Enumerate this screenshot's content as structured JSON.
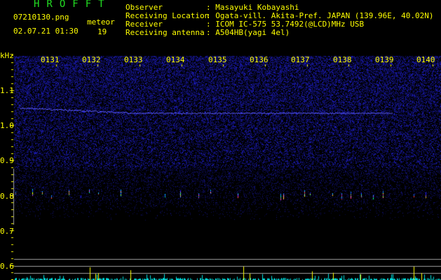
{
  "app_title": "HROFFT",
  "file_name": "07210130.png",
  "datetime": "02.07.21 01:30",
  "meteor_label": "meteor",
  "meteor_count": "19",
  "info": [
    {
      "label": "Observer",
      "value": ": Masayuki Kobayashi"
    },
    {
      "label": "Receiving Location",
      "value": ": Ogata-vill. Akita-Pref. JAPAN (139.96E, 40.02N)"
    },
    {
      "label": "Receiver",
      "value": ": ICOM IC-575 53.7492(@LCD)MHz USB"
    },
    {
      "label": "Receiving antenna",
      "value": ": A504HB(yagi 4el)"
    }
  ],
  "y_axis": {
    "unit": "kHz",
    "ticks": [
      "1.1",
      "1.0",
      "0.9",
      "0.8",
      "0.7",
      "0.6"
    ]
  },
  "time_labels": [
    "0131",
    "0132",
    "0133",
    "0134",
    "0135",
    "0136",
    "0137",
    "0138",
    "0139",
    "0140"
  ],
  "colors": {
    "text": "#ffff00",
    "title": "#22dd22",
    "noise": "#1a1aa0",
    "histogram_low": "#00e0e0",
    "histogram_high": "#ffff00"
  }
}
